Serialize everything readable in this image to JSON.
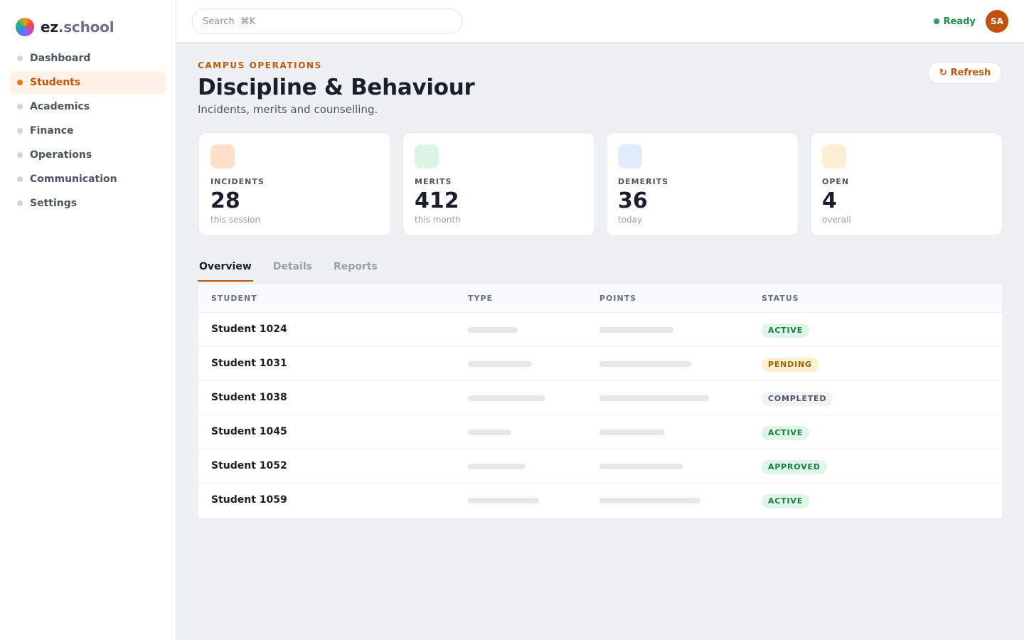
{
  "brand": {
    "name_ez": "ez",
    "name_rest": ".school"
  },
  "sidebar": {
    "items": [
      {
        "label": "Dashboard",
        "active": false
      },
      {
        "label": "Students",
        "active": true
      },
      {
        "label": "Academics",
        "active": false
      },
      {
        "label": "Finance",
        "active": false
      },
      {
        "label": "Operations",
        "active": false
      },
      {
        "label": "Communication",
        "active": false
      },
      {
        "label": "Settings",
        "active": false
      }
    ]
  },
  "topbar": {
    "search_placeholder": "Search  ⌘K",
    "status_text": "Ready",
    "avatar_initials": "SA"
  },
  "header": {
    "eyebrow": "CAMPUS OPERATIONS",
    "title": "Discipline & Behaviour",
    "subtitle": "Incidents, merits and counselling.",
    "refresh_label": "Refresh",
    "refresh_icon": "↻"
  },
  "kpis": [
    {
      "label": "INCIDENTS",
      "value": "28",
      "note": "this session",
      "icon_color": "#fde0c7"
    },
    {
      "label": "MERITS",
      "value": "412",
      "note": "this month",
      "icon_color": "#dcf5e7"
    },
    {
      "label": "DEMERITS",
      "value": "36",
      "note": "today",
      "icon_color": "#e0ecfd"
    },
    {
      "label": "OPEN",
      "value": "4",
      "note": "overall",
      "icon_color": "#fdefd3"
    }
  ],
  "tabs": [
    {
      "label": "Overview",
      "active": true
    },
    {
      "label": "Details",
      "active": false
    },
    {
      "label": "Reports",
      "active": false
    }
  ],
  "table": {
    "headers": {
      "student": "STUDENT",
      "type": "TYPE",
      "points": "POINTS",
      "status": "STATUS"
    },
    "rows": [
      {
        "student": "Student 1024",
        "status": "ACTIVE",
        "status_tone": "green"
      },
      {
        "student": "Student 1031",
        "status": "PENDING",
        "status_tone": "amber"
      },
      {
        "student": "Student 1038",
        "status": "COMPLETED",
        "status_tone": "gray"
      },
      {
        "student": "Student 1045",
        "status": "ACTIVE",
        "status_tone": "green"
      },
      {
        "student": "Student 1052",
        "status": "APPROVED",
        "status_tone": "green"
      },
      {
        "student": "Student 1059",
        "status": "ACTIVE",
        "status_tone": "green"
      }
    ]
  },
  "colors": {
    "accent": "#c2570c",
    "status_ready": "#22a65a",
    "avatar_bg": "#c2510c"
  }
}
